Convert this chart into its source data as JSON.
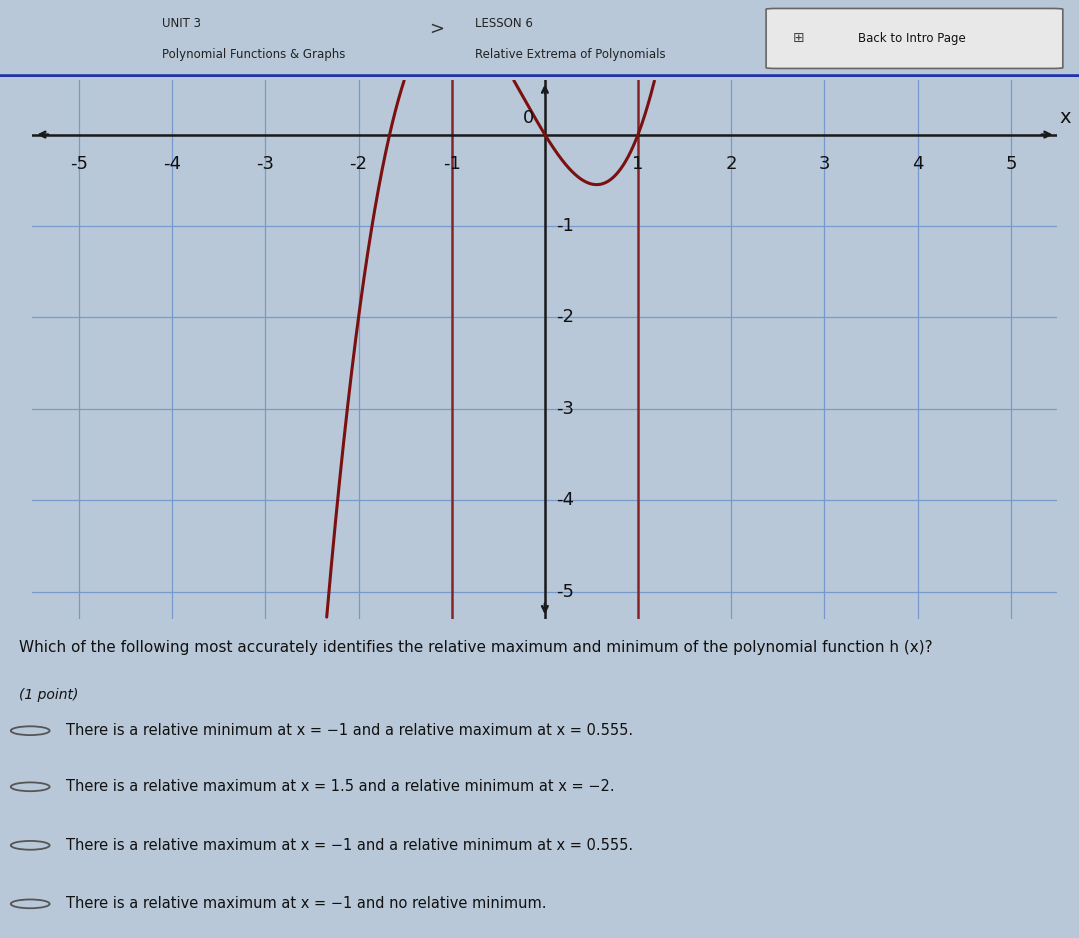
{
  "title_unit": "UNIT 3",
  "title_unit_sub": "Polynomial Functions & Graphs",
  "title_lesson": "LESSON 6",
  "title_lesson_sub": "Relative Extrema of Polynomials",
  "title_button": "Back to Intro Page",
  "question": "Which of the following most accurately identifies the relative maximum and minimum of the polynomial function h (x)?",
  "point_label": "(1 point)",
  "choices": [
    "There is a relative minimum at x = −1 and a relative maximum at x = 0.555.",
    "There is a relative maximum at x = 1.5 and a relative minimum at x = −2.",
    "There is a relative maximum at x = −1 and a relative minimum at x = 0.555.",
    "There is a relative maximum at x = −1 and no relative minimum."
  ],
  "xmin": -5,
  "xmax": 5,
  "ymin": -5,
  "ymax": 0,
  "xticks": [
    -5,
    -4,
    -3,
    -2,
    -1,
    0,
    1,
    2,
    3,
    4,
    5
  ],
  "yticks": [
    -5,
    -4,
    -3,
    -2,
    -1
  ],
  "curve_color": "#7B1010",
  "grid_color": "#7799cc",
  "bg_color": "#d0dce8",
  "page_bg": "#b8c8d8",
  "white_bg": "#dce8f0",
  "curve_linewidth": 2.2,
  "axis_linewidth": 1.8,
  "grid_linewidth": 0.9,
  "vline_color": "#8B1515",
  "vline_x": [
    -1,
    1
  ],
  "header_bg": "#dce8f0"
}
